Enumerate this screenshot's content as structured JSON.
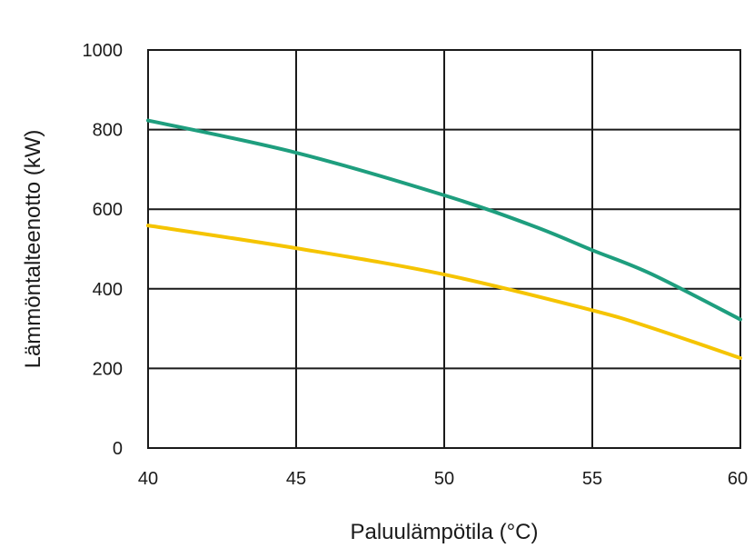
{
  "chart_data": {
    "type": "line",
    "xlabel": "Paluulämpötila (°C)",
    "ylabel": "Lämmöntalteenotto (kW)",
    "xlim": [
      40,
      60
    ],
    "ylim": [
      0,
      1000
    ],
    "x_ticks": [
      "40",
      "45",
      "50",
      "55",
      "60"
    ],
    "y_ticks": [
      "0",
      "200",
      "400",
      "600",
      "800",
      "1000"
    ],
    "grid": true,
    "series": [
      {
        "color": "#1e9e7e",
        "x": [
          40,
          45,
          50,
          53,
          55,
          57,
          60
        ],
        "y": [
          823,
          742,
          635,
          558,
          497,
          437,
          323
        ]
      },
      {
        "color": "#f5c400",
        "x": [
          40,
          45,
          50,
          55,
          57,
          60
        ],
        "y": [
          559,
          502,
          436,
          346,
          302,
          226
        ]
      }
    ]
  }
}
